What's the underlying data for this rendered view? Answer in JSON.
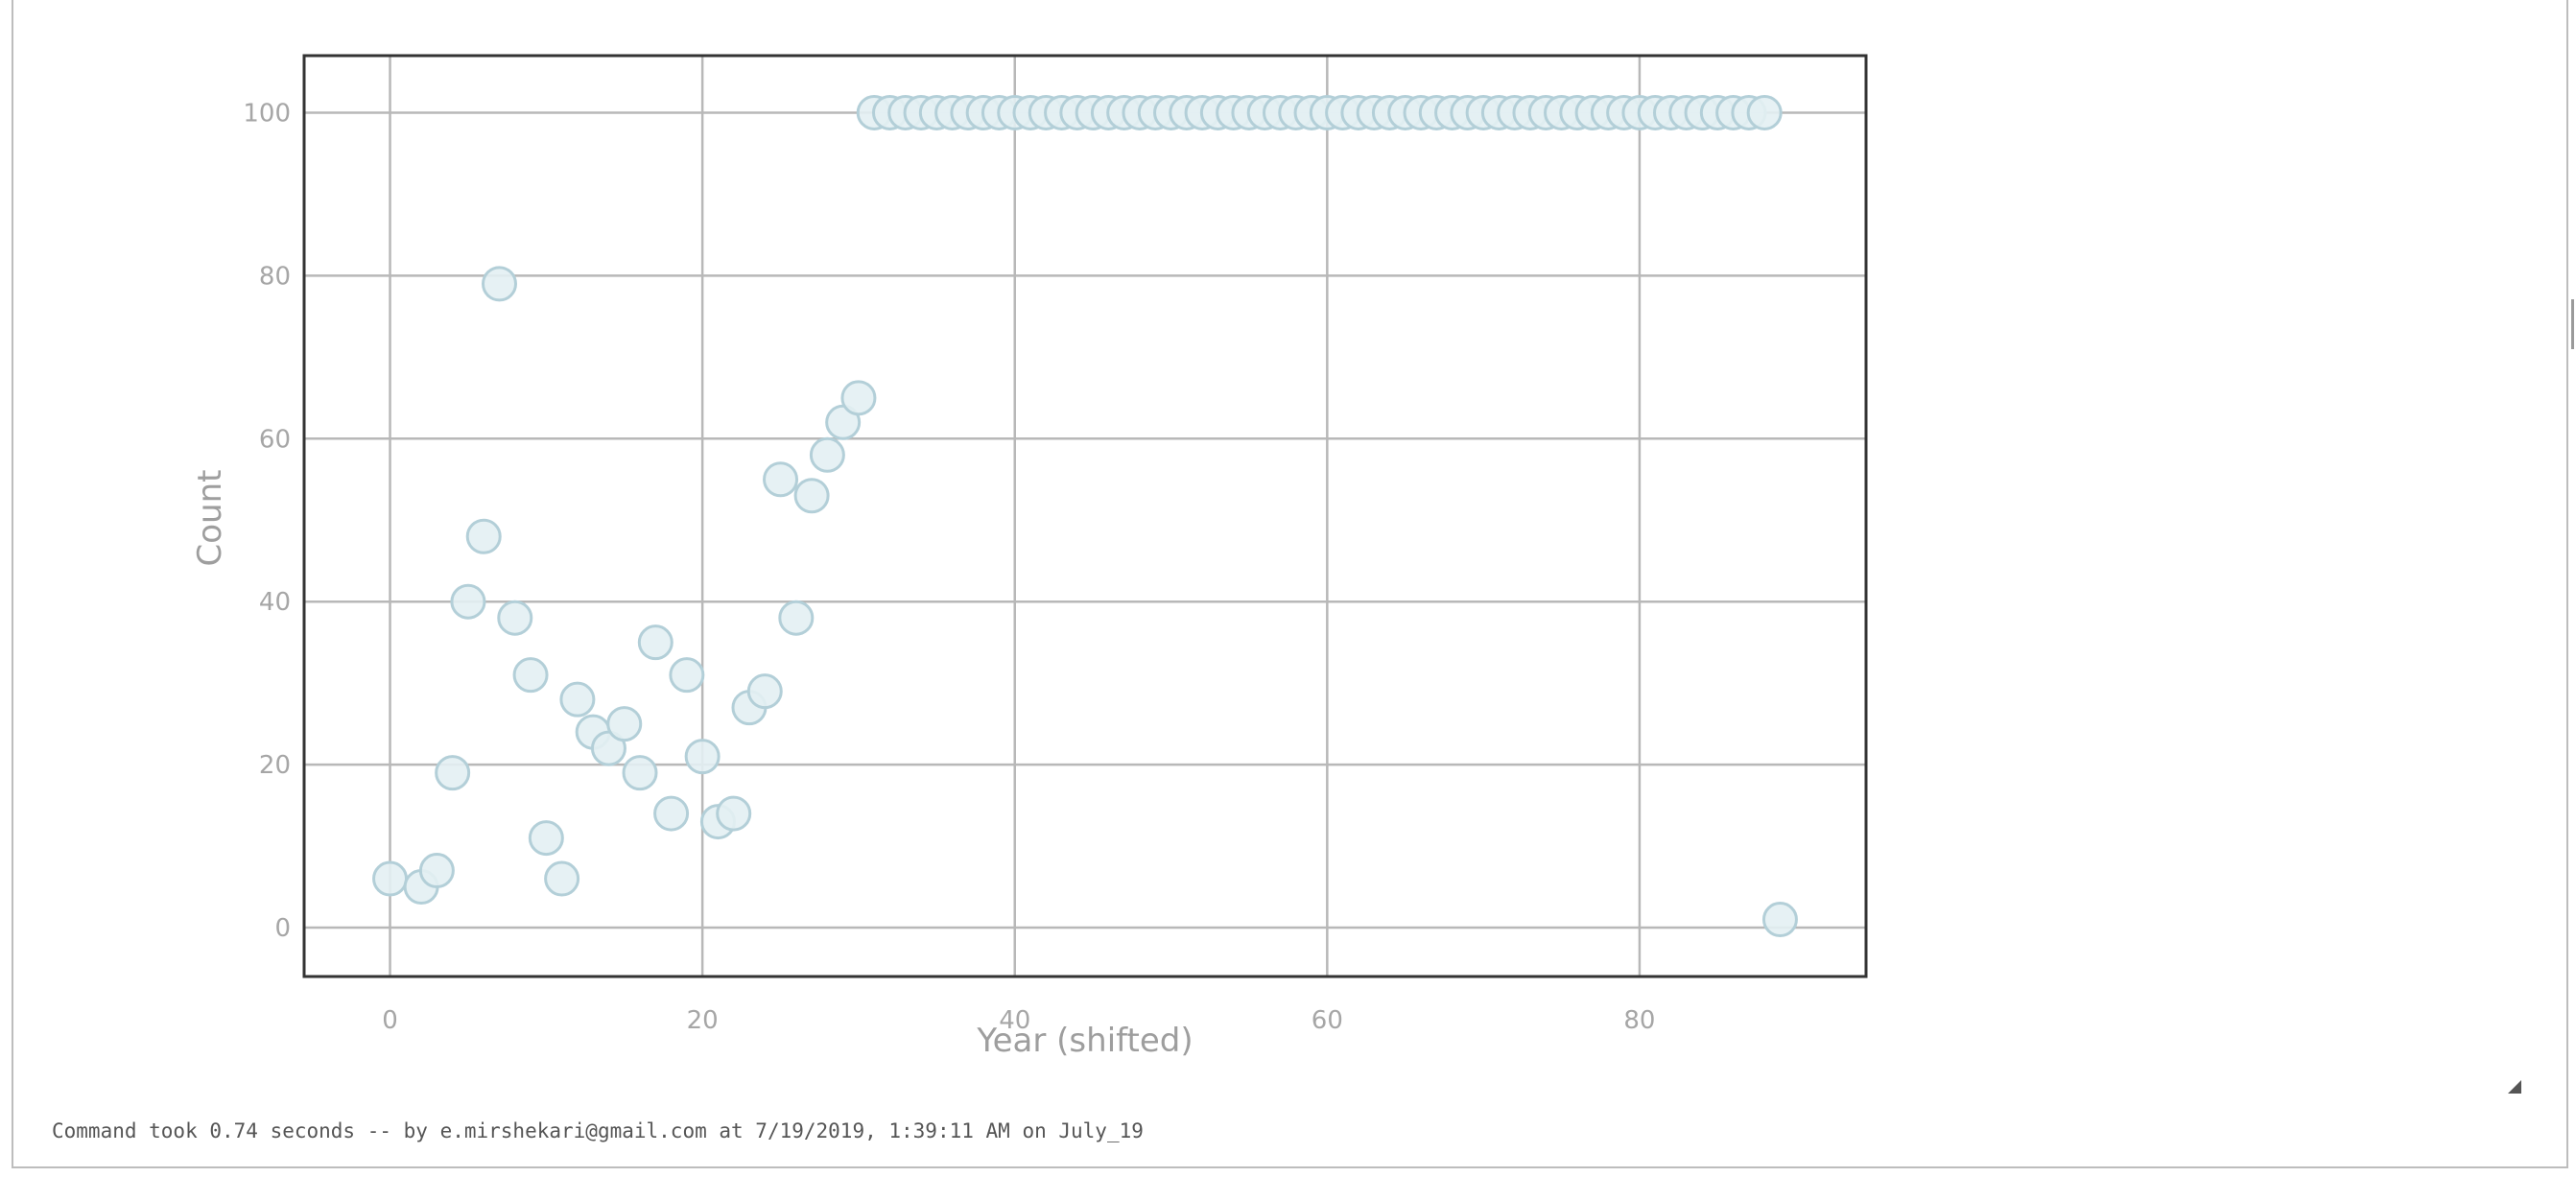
{
  "footer": {
    "command_status": "Command took 0.74 seconds -- by e.mirshekari@gmail.com at 7/19/2019, 1:39:11 AM on July_19"
  },
  "chart_data": {
    "type": "scatter",
    "title": "",
    "xlabel": "Year (shifted)",
    "ylabel": "Count",
    "xlim": [
      -5.5,
      94.5
    ],
    "ylim": [
      -6,
      107
    ],
    "xticks": [
      0,
      20,
      40,
      60,
      80
    ],
    "yticks": [
      0,
      20,
      40,
      60,
      80,
      100
    ],
    "grid": true,
    "legend": "none",
    "marker_fill": "#e3f0f3",
    "marker_stroke": "#b3cfd8",
    "points": [
      {
        "x": 0,
        "y": 6
      },
      {
        "x": 2,
        "y": 5
      },
      {
        "x": 3,
        "y": 7
      },
      {
        "x": 4,
        "y": 19
      },
      {
        "x": 5,
        "y": 40
      },
      {
        "x": 6,
        "y": 48
      },
      {
        "x": 7,
        "y": 79
      },
      {
        "x": 8,
        "y": 38
      },
      {
        "x": 9,
        "y": 31
      },
      {
        "x": 10,
        "y": 11
      },
      {
        "x": 11,
        "y": 6
      },
      {
        "x": 12,
        "y": 28
      },
      {
        "x": 13,
        "y": 24
      },
      {
        "x": 14,
        "y": 22
      },
      {
        "x": 15,
        "y": 25
      },
      {
        "x": 16,
        "y": 19
      },
      {
        "x": 17,
        "y": 35
      },
      {
        "x": 18,
        "y": 14
      },
      {
        "x": 19,
        "y": 31
      },
      {
        "x": 20,
        "y": 21
      },
      {
        "x": 21,
        "y": 13
      },
      {
        "x": 22,
        "y": 14
      },
      {
        "x": 23,
        "y": 27
      },
      {
        "x": 24,
        "y": 29
      },
      {
        "x": 25,
        "y": 55
      },
      {
        "x": 26,
        "y": 38
      },
      {
        "x": 27,
        "y": 53
      },
      {
        "x": 28,
        "y": 58
      },
      {
        "x": 29,
        "y": 62
      },
      {
        "x": 30,
        "y": 65
      },
      {
        "x": 31,
        "y": 100
      },
      {
        "x": 32,
        "y": 100
      },
      {
        "x": 33,
        "y": 100
      },
      {
        "x": 34,
        "y": 100
      },
      {
        "x": 35,
        "y": 100
      },
      {
        "x": 36,
        "y": 100
      },
      {
        "x": 37,
        "y": 100
      },
      {
        "x": 38,
        "y": 100
      },
      {
        "x": 39,
        "y": 100
      },
      {
        "x": 40,
        "y": 100
      },
      {
        "x": 41,
        "y": 100
      },
      {
        "x": 42,
        "y": 100
      },
      {
        "x": 43,
        "y": 100
      },
      {
        "x": 44,
        "y": 100
      },
      {
        "x": 45,
        "y": 100
      },
      {
        "x": 46,
        "y": 100
      },
      {
        "x": 47,
        "y": 100
      },
      {
        "x": 48,
        "y": 100
      },
      {
        "x": 49,
        "y": 100
      },
      {
        "x": 50,
        "y": 100
      },
      {
        "x": 51,
        "y": 100
      },
      {
        "x": 52,
        "y": 100
      },
      {
        "x": 53,
        "y": 100
      },
      {
        "x": 54,
        "y": 100
      },
      {
        "x": 55,
        "y": 100
      },
      {
        "x": 56,
        "y": 100
      },
      {
        "x": 57,
        "y": 100
      },
      {
        "x": 58,
        "y": 100
      },
      {
        "x": 59,
        "y": 100
      },
      {
        "x": 60,
        "y": 100
      },
      {
        "x": 61,
        "y": 100
      },
      {
        "x": 62,
        "y": 100
      },
      {
        "x": 63,
        "y": 100
      },
      {
        "x": 64,
        "y": 100
      },
      {
        "x": 65,
        "y": 100
      },
      {
        "x": 66,
        "y": 100
      },
      {
        "x": 67,
        "y": 100
      },
      {
        "x": 68,
        "y": 100
      },
      {
        "x": 69,
        "y": 100
      },
      {
        "x": 70,
        "y": 100
      },
      {
        "x": 71,
        "y": 100
      },
      {
        "x": 72,
        "y": 100
      },
      {
        "x": 73,
        "y": 100
      },
      {
        "x": 74,
        "y": 100
      },
      {
        "x": 75,
        "y": 100
      },
      {
        "x": 76,
        "y": 100
      },
      {
        "x": 77,
        "y": 100
      },
      {
        "x": 78,
        "y": 100
      },
      {
        "x": 79,
        "y": 100
      },
      {
        "x": 80,
        "y": 100
      },
      {
        "x": 81,
        "y": 100
      },
      {
        "x": 82,
        "y": 100
      },
      {
        "x": 83,
        "y": 100
      },
      {
        "x": 84,
        "y": 100
      },
      {
        "x": 85,
        "y": 100
      },
      {
        "x": 86,
        "y": 100
      },
      {
        "x": 87,
        "y": 100
      },
      {
        "x": 88,
        "y": 100
      },
      {
        "x": 89,
        "y": 1
      }
    ]
  }
}
